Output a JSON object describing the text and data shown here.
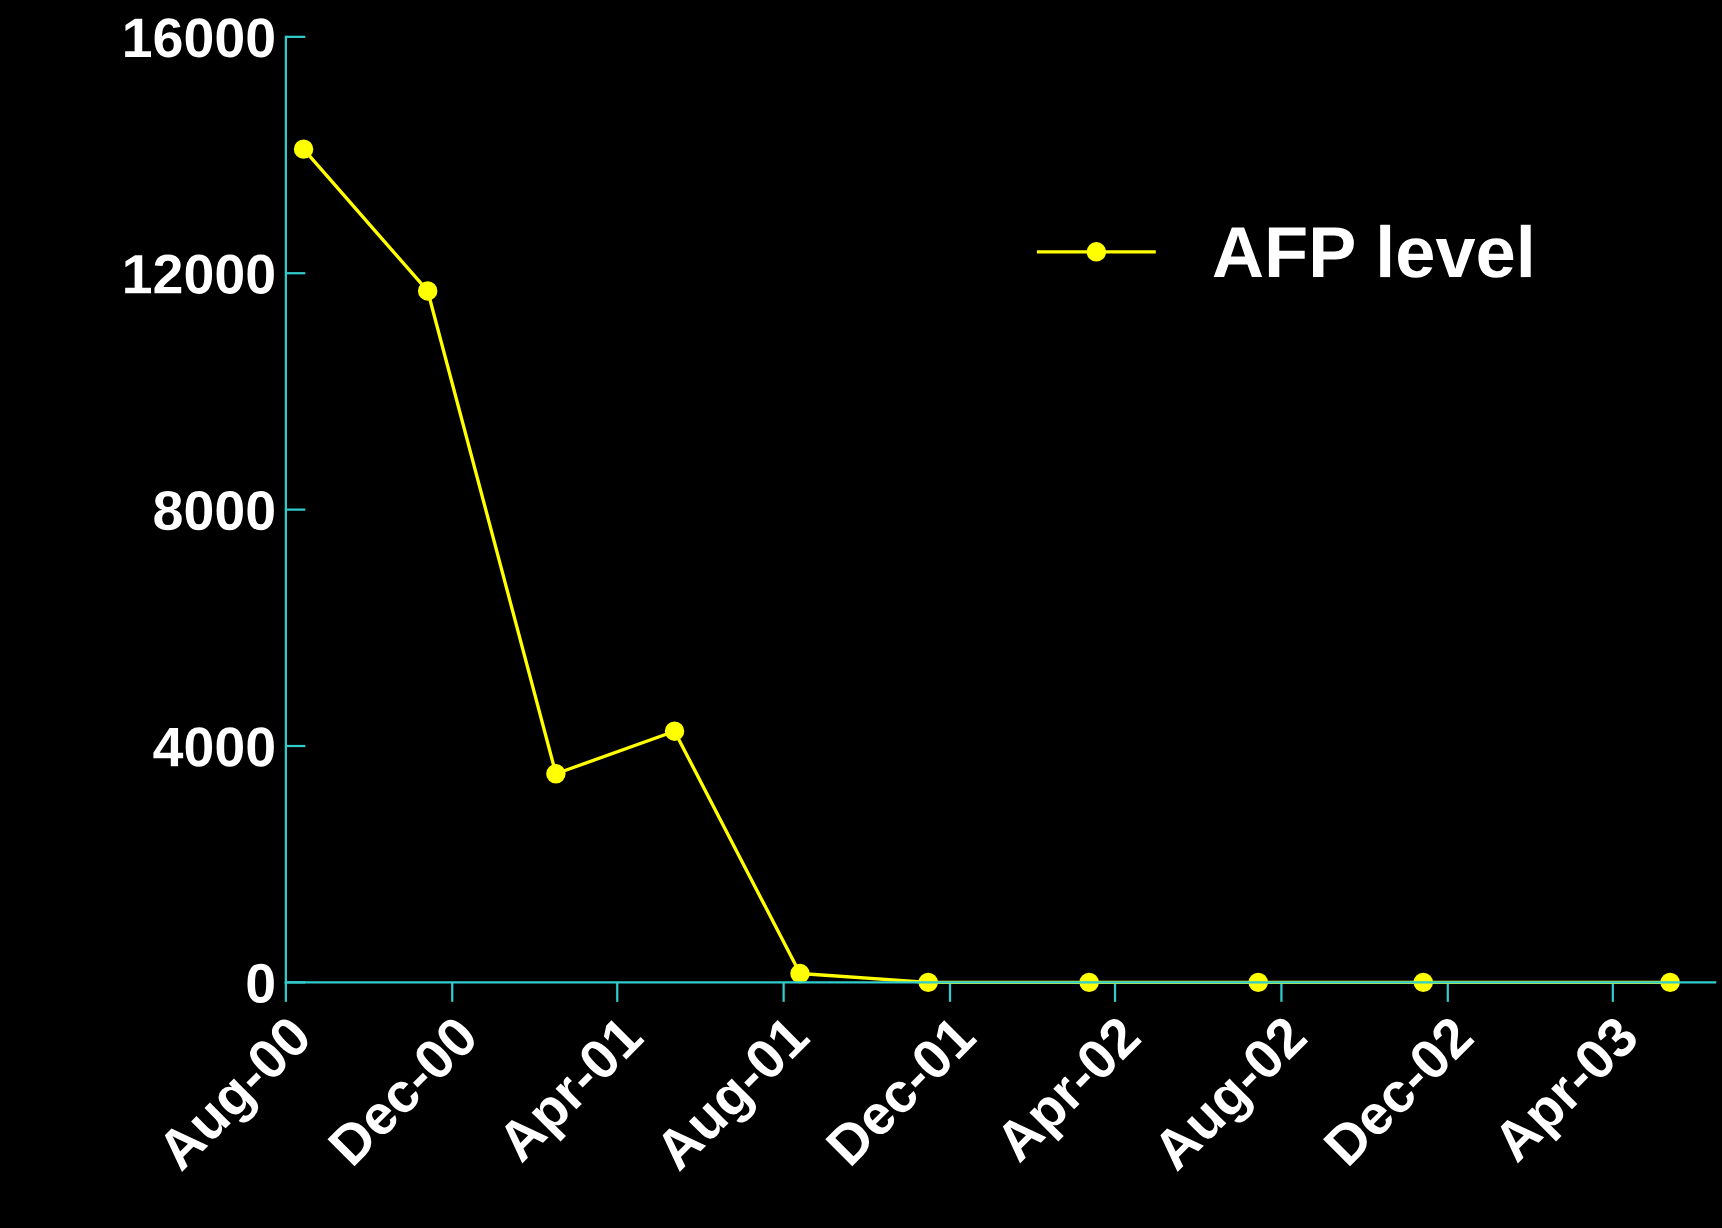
{
  "chart_data": {
    "type": "line",
    "x": [
      "2000-08-14",
      "2000-11-13",
      "2001-02-15",
      "2001-05-13",
      "2001-08-13",
      "2001-11-15",
      "2002-03-13",
      "2002-07-15",
      "2002-11-13",
      "2003-05-13"
    ],
    "series": [
      {
        "name": "AFP level",
        "color": "#ffff00",
        "values": [
          14100,
          11700,
          3530,
          4250,
          150,
          0,
          0,
          0,
          0,
          0
        ]
      }
    ],
    "xlim": [
      "2000-08-01",
      "2003-06-15"
    ],
    "xticks": [
      {
        "value": "2000-08-01",
        "label": "Aug-00"
      },
      {
        "value": "2000-12-01",
        "label": "Dec-00"
      },
      {
        "value": "2001-04-01",
        "label": "Apr-01"
      },
      {
        "value": "2001-08-01",
        "label": "Aug-01"
      },
      {
        "value": "2001-12-01",
        "label": "Dec-01"
      },
      {
        "value": "2002-04-01",
        "label": "Apr-02"
      },
      {
        "value": "2002-08-01",
        "label": "Aug-02"
      },
      {
        "value": "2002-12-01",
        "label": "Dec-02"
      },
      {
        "value": "2003-04-01",
        "label": "Apr-03"
      }
    ],
    "ylim": [
      0,
      16000
    ],
    "yticks": [
      0,
      4000,
      8000,
      12000,
      16000
    ],
    "legend": "top right",
    "marker": "circle",
    "line_style": "solid"
  }
}
